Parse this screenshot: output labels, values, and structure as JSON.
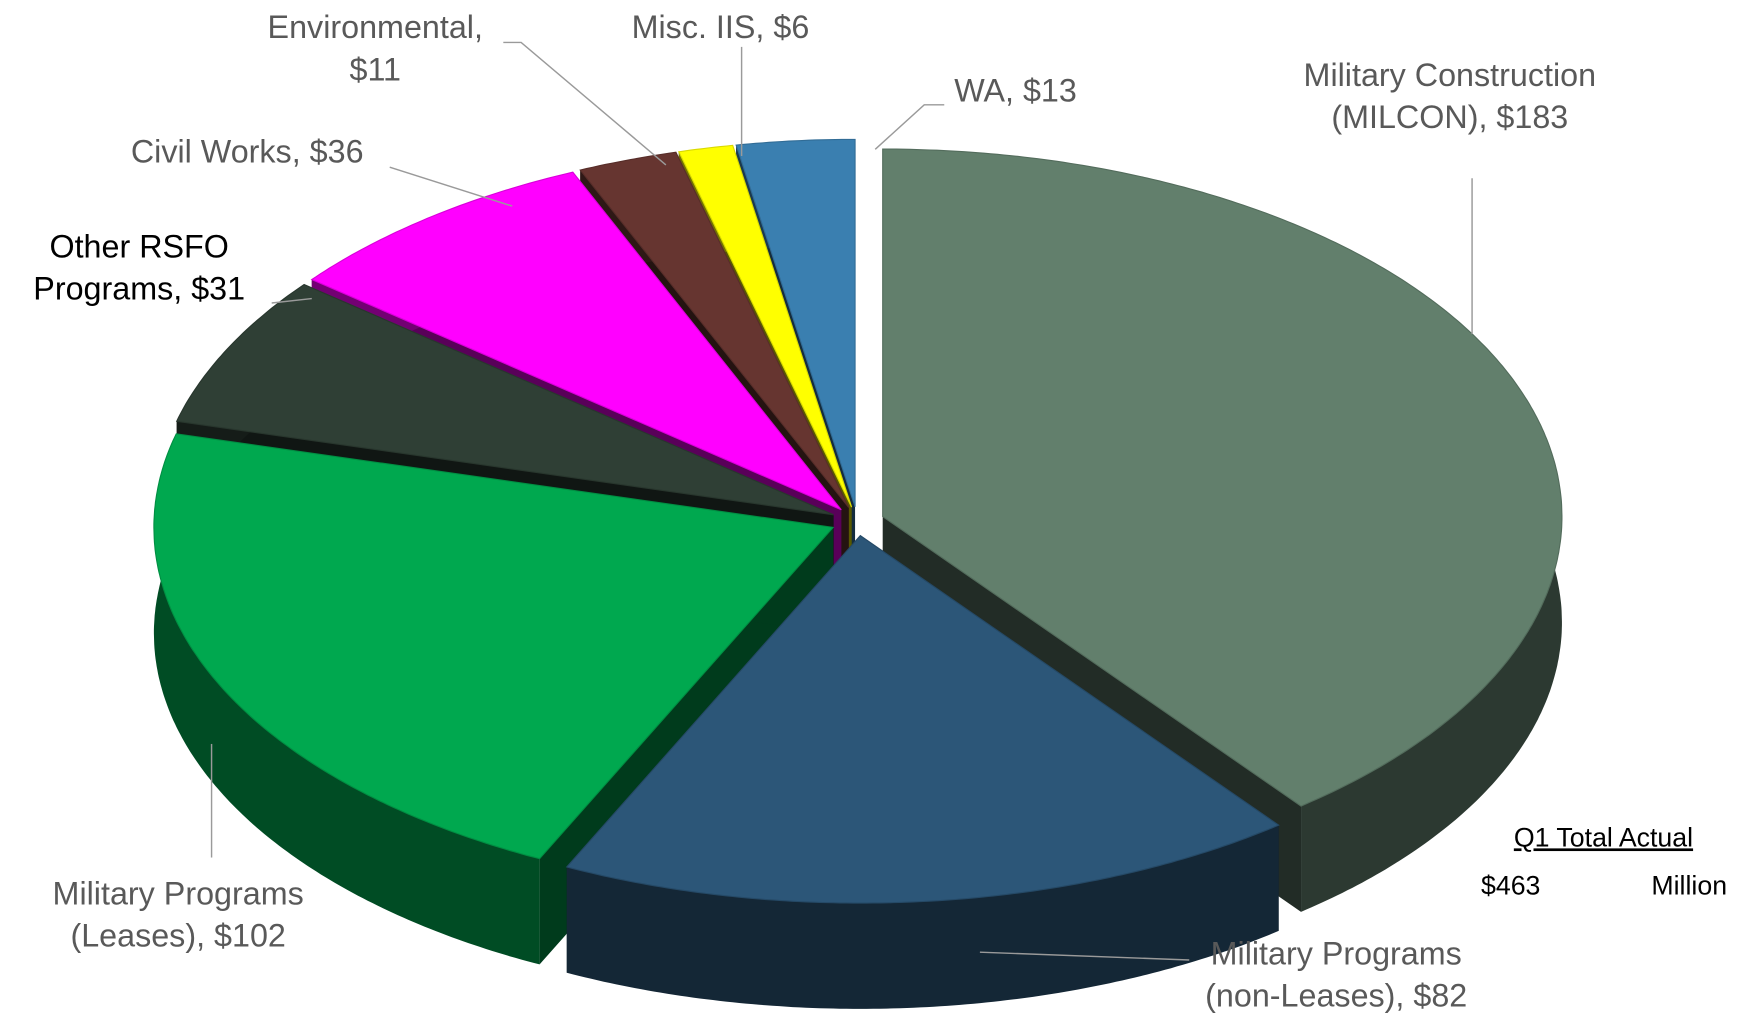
{
  "chart_data": {
    "type": "pie3d",
    "categories": [
      "Military Construction (MILCON),",
      "Military Programs (non-Leases),",
      "Military Programs (Leases),",
      "Other RSFO Programs,",
      "Civil Works,",
      "Environmental,",
      "Misc. IIS,",
      "WA,"
    ],
    "values": [
      183,
      82,
      102,
      31,
      36,
      11,
      6,
      13
    ],
    "value_labels": [
      "$183",
      "$82",
      "$102",
      "$31",
      "$36",
      "$11",
      "$6",
      "$13"
    ],
    "colors": [
      "#627f6c",
      "#2c5678",
      "#00a84f",
      "#2f3f35",
      "#ff00ff",
      "#663530",
      "#ffff00",
      "#3a7fb0"
    ],
    "total_title": "Q1 Total Actual",
    "total_value": "$463",
    "total_unit": "Million"
  }
}
